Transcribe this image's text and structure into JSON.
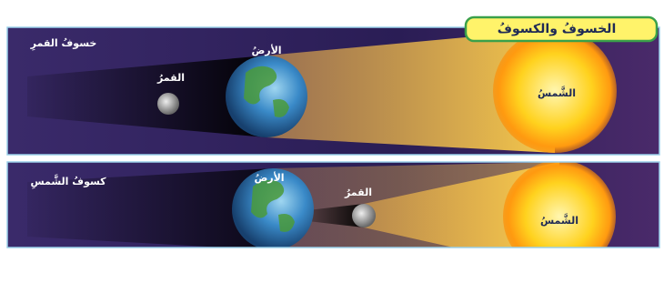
{
  "header": {
    "title": "الخسوفُ والكسوفُ"
  },
  "panels": [
    {
      "caption": "خسوفُ القمرِ",
      "earth": "الأرضُ",
      "moon": "القمرُ",
      "sun": "الشَّمسُ"
    },
    {
      "caption": "كسوفُ الشَّمسِ",
      "earth": "الأرضُ",
      "moon": "القمرُ",
      "sun": "الشَّمسُ"
    }
  ]
}
